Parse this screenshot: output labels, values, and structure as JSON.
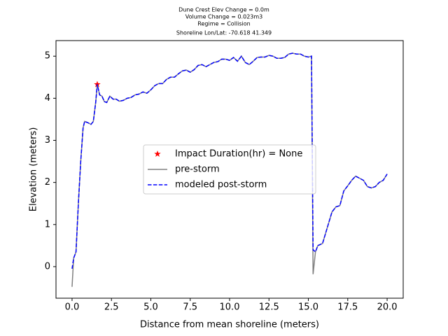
{
  "chart_data": {
    "type": "line",
    "title": [
      "Dune Crest Elev Change = 0.0m",
      "Volume Change = 0.023m3",
      "Regime = Collision",
      "Shoreline Lon/Lat: -70.618 41.349"
    ],
    "xlabel": "Distance from mean shoreline (meters)",
    "ylabel": "Elevation (meters)",
    "xlim": [
      -1.02,
      21.02
    ],
    "ylim": [
      -0.75,
      5.37
    ],
    "xticks": [
      {
        "value": 0,
        "label": "0.0"
      },
      2.5,
      {
        "value": 5,
        "label": "5.0"
      },
      7.5,
      {
        "value": 10,
        "label": "10.0"
      },
      12.5,
      {
        "value": 15,
        "label": "15.0"
      },
      17.5,
      {
        "value": 20,
        "label": "20.0"
      }
    ],
    "yticks": [
      0,
      1,
      2,
      3,
      4,
      5
    ],
    "legend": "center",
    "x": [
      0,
      0.1,
      0.25,
      0.4,
      0.55,
      0.7,
      0.8,
      1.0,
      1.2,
      1.35,
      1.5,
      1.6,
      1.75,
      1.9,
      2.05,
      2.2,
      2.4,
      2.6,
      2.8,
      3.0,
      3.25,
      3.5,
      3.75,
      4.0,
      4.25,
      4.5,
      4.75,
      5.0,
      5.25,
      5.5,
      5.75,
      6.0,
      6.25,
      6.5,
      6.75,
      7.0,
      7.25,
      7.5,
      7.75,
      8.0,
      8.25,
      8.5,
      8.75,
      9.0,
      9.25,
      9.5,
      9.75,
      10.0,
      10.25,
      10.5,
      10.75,
      11.0,
      11.25,
      11.5,
      11.75,
      12.0,
      12.25,
      12.5,
      12.75,
      13.0,
      13.25,
      13.5,
      13.75,
      14.0,
      14.25,
      14.5,
      14.75,
      15.0,
      15.2,
      15.3,
      15.45,
      15.6,
      15.9,
      16.1,
      16.3,
      16.5,
      16.75,
      17.0,
      17.25,
      17.5,
      17.75,
      18.0,
      18.25,
      18.5,
      18.75,
      19.0,
      19.25,
      19.5,
      19.75,
      20.0
    ],
    "series": [
      {
        "name": "Impact Duration(hr) = None",
        "color": "#ff0000",
        "marker": "*",
        "x": [
          1.6
        ],
        "values": [
          4.33
        ]
      },
      {
        "name": "pre-storm",
        "color": "#808080",
        "linestyle": "solid",
        "values": [
          -0.48,
          0.2,
          0.35,
          1.5,
          2.5,
          3.3,
          3.45,
          3.42,
          3.38,
          3.45,
          3.9,
          4.33,
          4.08,
          4.05,
          3.92,
          3.9,
          4.05,
          3.98,
          3.98,
          3.93,
          3.95,
          4.0,
          4.02,
          4.08,
          4.1,
          4.15,
          4.12,
          4.2,
          4.3,
          4.35,
          4.35,
          4.45,
          4.5,
          4.5,
          4.58,
          4.65,
          4.67,
          4.62,
          4.68,
          4.78,
          4.8,
          4.75,
          4.8,
          4.85,
          4.87,
          4.93,
          4.93,
          4.9,
          4.97,
          4.88,
          5.0,
          4.85,
          4.8,
          4.88,
          4.97,
          4.98,
          4.98,
          5.02,
          5.0,
          4.95,
          4.95,
          4.97,
          5.05,
          5.07,
          5.05,
          5.05,
          5.0,
          4.98,
          5.0,
          -0.18,
          0.35,
          0.5,
          0.55,
          0.8,
          1.05,
          1.3,
          1.42,
          1.45,
          1.8,
          1.92,
          2.05,
          2.15,
          2.1,
          2.05,
          1.9,
          1.87,
          1.9,
          2.0,
          2.05,
          2.2
        ]
      },
      {
        "name": "modeled post-storm",
        "color": "#0000ff",
        "linestyle": "dashed",
        "values": [
          -0.05,
          0.2,
          0.35,
          1.5,
          2.5,
          3.3,
          3.45,
          3.42,
          3.38,
          3.45,
          3.9,
          4.33,
          4.08,
          4.05,
          3.92,
          3.9,
          4.05,
          3.98,
          3.98,
          3.93,
          3.95,
          4.0,
          4.02,
          4.08,
          4.1,
          4.15,
          4.12,
          4.2,
          4.3,
          4.35,
          4.35,
          4.45,
          4.5,
          4.5,
          4.58,
          4.65,
          4.67,
          4.62,
          4.68,
          4.78,
          4.8,
          4.75,
          4.8,
          4.85,
          4.87,
          4.93,
          4.93,
          4.9,
          4.97,
          4.88,
          5.0,
          4.85,
          4.8,
          4.88,
          4.97,
          4.98,
          4.98,
          5.02,
          5.0,
          4.95,
          4.95,
          4.97,
          5.05,
          5.07,
          5.05,
          5.05,
          5.0,
          4.98,
          5.0,
          0.4,
          0.35,
          0.5,
          0.55,
          0.8,
          1.05,
          1.3,
          1.42,
          1.45,
          1.8,
          1.92,
          2.05,
          2.15,
          2.1,
          2.05,
          1.9,
          1.87,
          1.9,
          2.0,
          2.05,
          2.2
        ]
      }
    ]
  }
}
